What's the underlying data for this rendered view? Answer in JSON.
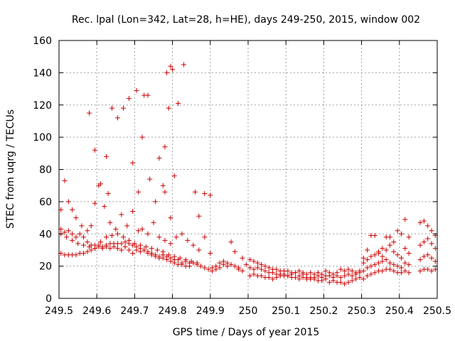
{
  "chart_data": {
    "type": "scatter",
    "title": "Rec. lpal (Lon=342, Lat=28, h=HE), days 249-250, 2015, window 002",
    "xlabel": "GPS time / Days of year 2015",
    "ylabel": "STEC from uqrg / TECUs",
    "xlim": [
      249.5,
      250.5
    ],
    "ylim": [
      0,
      160
    ],
    "grid": true,
    "x_ticks": [
      "249.5",
      "249.6",
      "249.7",
      "249.8",
      "249.9",
      "250",
      "250.1",
      "250.2",
      "250.3",
      "250.4",
      "250.5"
    ],
    "x_tick_values": [
      249.5,
      249.6,
      249.7,
      249.8,
      249.9,
      250.0,
      250.1,
      250.2,
      250.3,
      250.4,
      250.5
    ],
    "y_ticks": [
      "0",
      "20",
      "40",
      "60",
      "80",
      "100",
      "120",
      "140",
      "160"
    ],
    "y_tick_values": [
      0,
      20,
      40,
      60,
      80,
      100,
      120,
      140,
      160
    ],
    "marker_color": "#cc0000",
    "points": [
      [
        249.505,
        55
      ],
      [
        249.515,
        73
      ],
      [
        249.525,
        60
      ],
      [
        249.535,
        55
      ],
      [
        249.545,
        50
      ],
      [
        249.56,
        45
      ],
      [
        249.575,
        42
      ],
      [
        249.585,
        45
      ],
      [
        249.595,
        59
      ],
      [
        249.605,
        70
      ],
      [
        249.62,
        57
      ],
      [
        249.635,
        47
      ],
      [
        249.65,
        43
      ],
      [
        249.665,
        52
      ],
      [
        249.68,
        45
      ],
      [
        249.695,
        54
      ],
      [
        249.71,
        42
      ],
      [
        249.72,
        43
      ],
      [
        249.735,
        40
      ],
      [
        249.75,
        47
      ],
      [
        249.765,
        38
      ],
      [
        249.78,
        36
      ],
      [
        249.795,
        34
      ],
      [
        249.81,
        38
      ],
      [
        249.825,
        40
      ],
      [
        249.84,
        36
      ],
      [
        249.855,
        33
      ],
      [
        249.87,
        30
      ],
      [
        249.885,
        38
      ],
      [
        249.9,
        28
      ],
      [
        249.505,
        43
      ],
      [
        249.515,
        41
      ],
      [
        249.525,
        42
      ],
      [
        249.535,
        40
      ],
      [
        249.545,
        38
      ],
      [
        249.555,
        40
      ],
      [
        249.565,
        38
      ],
      [
        249.575,
        35
      ],
      [
        249.585,
        33
      ],
      [
        249.595,
        31
      ],
      [
        249.605,
        33
      ],
      [
        249.615,
        31
      ],
      [
        249.625,
        32
      ],
      [
        249.635,
        31
      ],
      [
        249.645,
        32
      ],
      [
        249.655,
        31
      ],
      [
        249.665,
        30
      ],
      [
        249.675,
        32
      ],
      [
        249.685,
        30
      ],
      [
        249.695,
        28
      ],
      [
        249.705,
        30
      ],
      [
        249.715,
        29
      ],
      [
        249.725,
        30
      ],
      [
        249.735,
        28
      ],
      [
        249.745,
        27
      ],
      [
        249.755,
        26
      ],
      [
        249.765,
        25
      ],
      [
        249.775,
        27
      ],
      [
        249.785,
        26
      ],
      [
        249.795,
        25
      ],
      [
        249.805,
        24
      ],
      [
        249.815,
        24
      ],
      [
        249.825,
        22
      ],
      [
        249.835,
        23
      ],
      [
        249.845,
        22
      ],
      [
        249.855,
        22
      ],
      [
        249.865,
        21
      ],
      [
        249.875,
        20
      ],
      [
        249.885,
        19
      ],
      [
        249.895,
        18
      ],
      [
        249.905,
        19
      ],
      [
        249.505,
        28
      ],
      [
        249.515,
        27
      ],
      [
        249.525,
        27
      ],
      [
        249.535,
        27
      ],
      [
        249.545,
        27
      ],
      [
        249.555,
        28
      ],
      [
        249.565,
        28
      ],
      [
        249.575,
        29
      ],
      [
        249.585,
        30
      ],
      [
        249.595,
        31
      ],
      [
        249.605,
        32
      ],
      [
        249.615,
        32
      ],
      [
        249.625,
        33
      ],
      [
        249.635,
        34
      ],
      [
        249.645,
        34
      ],
      [
        249.655,
        34
      ],
      [
        249.665,
        34
      ],
      [
        249.675,
        35
      ],
      [
        249.685,
        34
      ],
      [
        249.695,
        33
      ],
      [
        249.705,
        32
      ],
      [
        249.715,
        31
      ],
      [
        249.725,
        30
      ],
      [
        249.735,
        29
      ],
      [
        249.745,
        28
      ],
      [
        249.755,
        27
      ],
      [
        249.765,
        26
      ],
      [
        249.775,
        25
      ],
      [
        249.785,
        24
      ],
      [
        249.795,
        23
      ],
      [
        249.805,
        22
      ],
      [
        249.815,
        21
      ],
      [
        249.825,
        21
      ],
      [
        249.835,
        20
      ],
      [
        249.845,
        20
      ],
      [
        249.505,
        40
      ],
      [
        249.52,
        38
      ],
      [
        249.535,
        36
      ],
      [
        249.55,
        34
      ],
      [
        249.565,
        33
      ],
      [
        249.58,
        32
      ],
      [
        249.595,
        33
      ],
      [
        249.61,
        35
      ],
      [
        249.625,
        38
      ],
      [
        249.64,
        39
      ],
      [
        249.655,
        40
      ],
      [
        249.67,
        38
      ],
      [
        249.685,
        36
      ],
      [
        249.7,
        34
      ],
      [
        249.715,
        33
      ],
      [
        249.73,
        32
      ],
      [
        249.745,
        31
      ],
      [
        249.76,
        30
      ],
      [
        249.775,
        29
      ],
      [
        249.79,
        27
      ],
      [
        249.805,
        26
      ],
      [
        249.82,
        25
      ],
      [
        249.835,
        24
      ],
      [
        249.85,
        23
      ],
      [
        249.865,
        22
      ],
      [
        249.58,
        115
      ],
      [
        249.595,
        92
      ],
      [
        249.61,
        71
      ],
      [
        249.625,
        88
      ],
      [
        249.64,
        118
      ],
      [
        249.655,
        112
      ],
      [
        249.67,
        118
      ],
      [
        249.685,
        124
      ],
      [
        249.695,
        84
      ],
      [
        249.705,
        129
      ],
      [
        249.72,
        100
      ],
      [
        249.725,
        126
      ],
      [
        249.735,
        126
      ],
      [
        249.74,
        74
      ],
      [
        249.755,
        60
      ],
      [
        249.765,
        87
      ],
      [
        249.775,
        70
      ],
      [
        249.78,
        66
      ],
      [
        249.785,
        140
      ],
      [
        249.795,
        144
      ],
      [
        249.8,
        142
      ],
      [
        249.805,
        76
      ],
      [
        249.815,
        121
      ],
      [
        249.83,
        145
      ],
      [
        249.78,
        94
      ],
      [
        249.79,
        118
      ],
      [
        249.795,
        50
      ],
      [
        249.86,
        66
      ],
      [
        249.87,
        51
      ],
      [
        249.885,
        65
      ],
      [
        249.9,
        64
      ],
      [
        249.71,
        66
      ],
      [
        249.63,
        65
      ],
      [
        249.905,
        17
      ],
      [
        249.915,
        18
      ],
      [
        249.925,
        22
      ],
      [
        249.935,
        21
      ],
      [
        249.945,
        20
      ],
      [
        249.955,
        35
      ],
      [
        249.965,
        29
      ],
      [
        249.975,
        19
      ],
      [
        249.985,
        25
      ],
      [
        249.995,
        21
      ],
      [
        249.915,
        20
      ],
      [
        249.925,
        19
      ],
      [
        249.935,
        23
      ],
      [
        249.945,
        22
      ],
      [
        249.955,
        21
      ],
      [
        249.965,
        20
      ],
      [
        249.975,
        18
      ],
      [
        249.985,
        17
      ],
      [
        250.005,
        14
      ],
      [
        250.015,
        15
      ],
      [
        250.025,
        14
      ],
      [
        250.035,
        14
      ],
      [
        250.045,
        13
      ],
      [
        250.055,
        13
      ],
      [
        250.065,
        12
      ],
      [
        250.075,
        13
      ],
      [
        250.085,
        14
      ],
      [
        250.095,
        15
      ],
      [
        250.105,
        14
      ],
      [
        250.115,
        15
      ],
      [
        250.125,
        16
      ],
      [
        250.135,
        14
      ],
      [
        250.145,
        15
      ],
      [
        250.155,
        13
      ],
      [
        250.165,
        13
      ],
      [
        250.175,
        12
      ],
      [
        250.185,
        11
      ],
      [
        250.195,
        11
      ],
      [
        250.205,
        12
      ],
      [
        250.215,
        10
      ],
      [
        250.225,
        11
      ],
      [
        250.235,
        10
      ],
      [
        250.245,
        10
      ],
      [
        250.255,
        9
      ],
      [
        250.265,
        10
      ],
      [
        250.275,
        11
      ],
      [
        250.285,
        12
      ],
      [
        250.295,
        13
      ],
      [
        250.005,
        24
      ],
      [
        250.015,
        23
      ],
      [
        250.025,
        22
      ],
      [
        250.035,
        21
      ],
      [
        250.045,
        20
      ],
      [
        250.055,
        19
      ],
      [
        250.065,
        18
      ],
      [
        250.075,
        18
      ],
      [
        250.085,
        17
      ],
      [
        250.095,
        17
      ],
      [
        250.105,
        17
      ],
      [
        250.115,
        16
      ],
      [
        250.125,
        16
      ],
      [
        250.135,
        17
      ],
      [
        250.145,
        16
      ],
      [
        250.155,
        15
      ],
      [
        250.165,
        16
      ],
      [
        250.175,
        15
      ],
      [
        250.185,
        16
      ],
      [
        250.195,
        15
      ],
      [
        250.205,
        17
      ],
      [
        250.215,
        16
      ],
      [
        250.225,
        15
      ],
      [
        250.235,
        16
      ],
      [
        250.245,
        18
      ],
      [
        250.255,
        17
      ],
      [
        250.265,
        18
      ],
      [
        250.275,
        17
      ],
      [
        250.285,
        16
      ],
      [
        250.295,
        17
      ],
      [
        250.005,
        19
      ],
      [
        250.015,
        18
      ],
      [
        250.025,
        19
      ],
      [
        250.035,
        18
      ],
      [
        250.045,
        17
      ],
      [
        250.055,
        16
      ],
      [
        250.065,
        16
      ],
      [
        250.075,
        15
      ],
      [
        250.085,
        15
      ],
      [
        250.095,
        14
      ],
      [
        250.105,
        14
      ],
      [
        250.115,
        13
      ],
      [
        250.125,
        13
      ],
      [
        250.135,
        12
      ],
      [
        250.145,
        13
      ],
      [
        250.155,
        12
      ],
      [
        250.165,
        12
      ],
      [
        250.175,
        13
      ],
      [
        250.185,
        14
      ],
      [
        250.195,
        13
      ],
      [
        250.205,
        14
      ],
      [
        250.215,
        14
      ],
      [
        250.225,
        13
      ],
      [
        250.235,
        14
      ],
      [
        250.245,
        13
      ],
      [
        250.255,
        14
      ],
      [
        250.265,
        15
      ],
      [
        250.275,
        14
      ],
      [
        250.285,
        15
      ],
      [
        250.295,
        16
      ],
      [
        250.305,
        25
      ],
      [
        250.315,
        30
      ],
      [
        250.325,
        39
      ],
      [
        250.335,
        39
      ],
      [
        250.345,
        29
      ],
      [
        250.355,
        31
      ],
      [
        250.365,
        38
      ],
      [
        250.375,
        38
      ],
      [
        250.385,
        35
      ],
      [
        250.395,
        42
      ],
      [
        250.405,
        40
      ],
      [
        250.415,
        49
      ],
      [
        250.425,
        38
      ],
      [
        250.455,
        47
      ],
      [
        250.465,
        48
      ],
      [
        250.475,
        45
      ],
      [
        250.485,
        42
      ],
      [
        250.495,
        39
      ],
      [
        250.305,
        22
      ],
      [
        250.315,
        24
      ],
      [
        250.325,
        26
      ],
      [
        250.335,
        27
      ],
      [
        250.345,
        28
      ],
      [
        250.355,
        26
      ],
      [
        250.365,
        30
      ],
      [
        250.375,
        33
      ],
      [
        250.385,
        29
      ],
      [
        250.395,
        27
      ],
      [
        250.405,
        25
      ],
      [
        250.415,
        31
      ],
      [
        250.425,
        28
      ],
      [
        250.455,
        33
      ],
      [
        250.465,
        35
      ],
      [
        250.475,
        37
      ],
      [
        250.485,
        34
      ],
      [
        250.495,
        31
      ],
      [
        250.305,
        17
      ],
      [
        250.315,
        19
      ],
      [
        250.325,
        20
      ],
      [
        250.335,
        21
      ],
      [
        250.345,
        22
      ],
      [
        250.355,
        23
      ],
      [
        250.365,
        24
      ],
      [
        250.375,
        22
      ],
      [
        250.385,
        21
      ],
      [
        250.395,
        20
      ],
      [
        250.405,
        19
      ],
      [
        250.415,
        22
      ],
      [
        250.425,
        21
      ],
      [
        250.455,
        24
      ],
      [
        250.465,
        26
      ],
      [
        250.475,
        27
      ],
      [
        250.485,
        25
      ],
      [
        250.495,
        23
      ],
      [
        250.305,
        12
      ],
      [
        250.315,
        14
      ],
      [
        250.325,
        15
      ],
      [
        250.335,
        16
      ],
      [
        250.345,
        17
      ],
      [
        250.355,
        17
      ],
      [
        250.365,
        18
      ],
      [
        250.375,
        18
      ],
      [
        250.385,
        17
      ],
      [
        250.395,
        16
      ],
      [
        250.405,
        16
      ],
      [
        250.415,
        17
      ],
      [
        250.425,
        16
      ],
      [
        250.455,
        17
      ],
      [
        250.465,
        18
      ],
      [
        250.475,
        18
      ],
      [
        250.485,
        17
      ],
      [
        250.495,
        18
      ]
    ]
  }
}
